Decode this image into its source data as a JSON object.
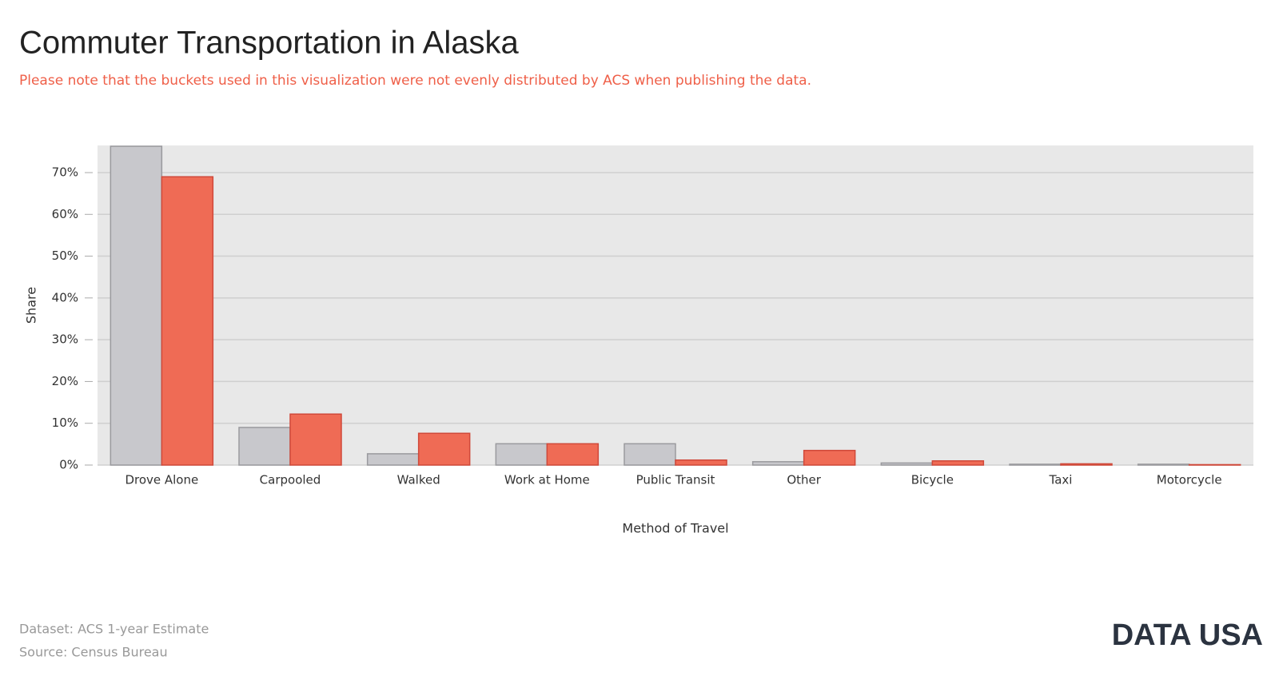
{
  "chart_data": {
    "type": "bar",
    "title": "Commuter Transportation in Alaska",
    "subtitle": "Please note that the buckets used in this visualization were not evenly distributed by ACS when publishing the data.",
    "x_label": "Method of Travel",
    "y_label": "Share",
    "categories": [
      "Drove Alone",
      "Carpooled",
      "Walked",
      "Work at Home",
      "Public Transit",
      "Other",
      "Bicycle",
      "Taxi",
      "Motorcycle"
    ],
    "series": [
      {
        "color": "#c8c8cc",
        "values": [
          76.3,
          9.0,
          2.7,
          5.1,
          5.1,
          0.8,
          0.5,
          0.2,
          0.2
        ]
      },
      {
        "color": "#ef6b55",
        "values": [
          69.0,
          12.2,
          7.6,
          5.1,
          1.2,
          3.5,
          1.0,
          0.3,
          0.1
        ]
      }
    ],
    "ylim": [
      0,
      76.5
    ],
    "yticks": [
      {
        "value": 0,
        "label": "0%"
      },
      {
        "value": 10,
        "label": "10%"
      },
      {
        "value": 20,
        "label": "20%"
      },
      {
        "value": 30,
        "label": "30%"
      },
      {
        "value": 40,
        "label": "40%"
      },
      {
        "value": 50,
        "label": "50%"
      },
      {
        "value": 60,
        "label": "60%"
      },
      {
        "value": 70,
        "label": "70%"
      }
    ],
    "grid": true
  },
  "footer": {
    "dataset": "Dataset: ACS 1-year Estimate",
    "source": "Source: Census Bureau"
  },
  "logo": "DATA USA"
}
